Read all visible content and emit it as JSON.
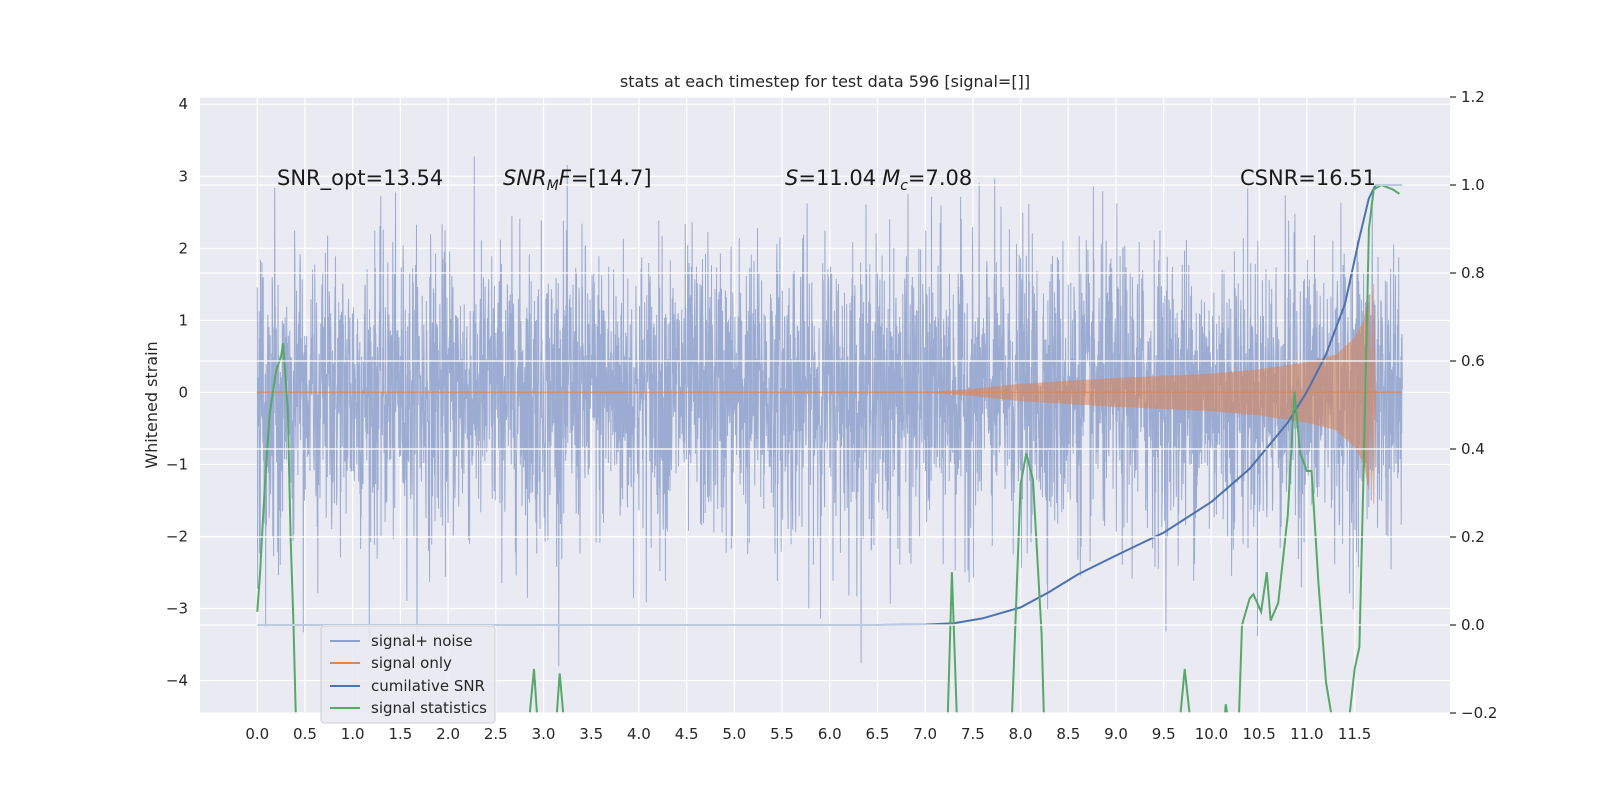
{
  "chart_data": {
    "type": "line",
    "title": "stats at each timestep for test data 596 [signal=[]]",
    "ylabel": "Whitened strain",
    "xlim": [
      -0.6,
      12.5
    ],
    "ylim": [
      -4.45,
      4.1
    ],
    "y2lim": [
      -0.2,
      1.2
    ],
    "x_ticks": [
      0.0,
      0.5,
      1.0,
      1.5,
      2.0,
      2.5,
      3.0,
      3.5,
      4.0,
      4.5,
      5.0,
      5.5,
      6.0,
      6.5,
      7.0,
      7.5,
      8.0,
      8.5,
      9.0,
      9.5,
      10.0,
      10.5,
      11.0,
      11.5
    ],
    "x_tick_labels": [
      "0.0",
      "0.5",
      "1.0",
      "1.5",
      "2.0",
      "2.5",
      "3.0",
      "3.5",
      "4.0",
      "4.5",
      "5.0",
      "5.5",
      "6.0",
      "6.5",
      "7.0",
      "7.5",
      "8.0",
      "8.5",
      "9.0",
      "9.5",
      "10.0",
      "10.5",
      "11.0",
      "11.5"
    ],
    "y_ticks": [
      -4,
      -3,
      -2,
      -1,
      0,
      1,
      2,
      3,
      4
    ],
    "y_tick_labels": [
      "−4",
      "−3",
      "−2",
      "−1",
      "0",
      "1",
      "2",
      "3",
      "4"
    ],
    "y2_ticks": [
      -0.2,
      0.0,
      0.2,
      0.4,
      0.6,
      0.8,
      1.0,
      1.2
    ],
    "y2_tick_labels": [
      "−0.2",
      "0.0",
      "0.2",
      "0.4",
      "0.6",
      "0.8",
      "1.0",
      "1.2"
    ],
    "grid": true,
    "legend_position": "lower-left",
    "annotations": {
      "snr_opt": "SNR_opt=13.54",
      "snr_mf_italic": "SNR",
      "snr_mf_sub": "M",
      "snr_mf_italic2": "F",
      "snr_mf_value": "=[14.7]",
      "s_italic": "S",
      "s_value": "=11.04",
      "mc_italic": "M",
      "mc_sub": "c",
      "mc_value": "=7.08",
      "csnr": "CSNR=16.51"
    },
    "series": [
      {
        "name": "signal+ noise",
        "axis": "left",
        "color": "#8da0cb",
        "style": "dense-noise",
        "x_range": [
          0.0,
          12.0
        ],
        "typical_envelope": [
          -1.65,
          1.65
        ],
        "min": -3.8,
        "max": 3.7
      },
      {
        "name": "signal only",
        "axis": "left",
        "color": "#dd8452",
        "style": "chirp",
        "x_range": [
          0.0,
          12.0
        ],
        "envelope": [
          [
            7.0,
            0.0
          ],
          [
            7.5,
            0.05
          ],
          [
            8.0,
            0.12
          ],
          [
            8.5,
            0.16
          ],
          [
            9.0,
            0.2
          ],
          [
            9.5,
            0.23
          ],
          [
            10.0,
            0.26
          ],
          [
            10.5,
            0.32
          ],
          [
            11.0,
            0.42
          ],
          [
            11.3,
            0.52
          ],
          [
            11.5,
            0.75
          ],
          [
            11.6,
            1.0
          ],
          [
            11.65,
            1.35
          ],
          [
            11.7,
            -1.55
          ],
          [
            11.72,
            0.0
          ],
          [
            12.0,
            0.0
          ]
        ]
      },
      {
        "name": "cumilative SNR",
        "axis": "right",
        "color": "#4c72b0",
        "points": [
          [
            0.0,
            0.0
          ],
          [
            6.5,
            0.0
          ],
          [
            7.0,
            0.001
          ],
          [
            7.3,
            0.004
          ],
          [
            7.6,
            0.015
          ],
          [
            8.0,
            0.04
          ],
          [
            8.3,
            0.075
          ],
          [
            8.6,
            0.115
          ],
          [
            9.0,
            0.158
          ],
          [
            9.5,
            0.21
          ],
          [
            10.0,
            0.28
          ],
          [
            10.4,
            0.355
          ],
          [
            10.8,
            0.46
          ],
          [
            11.0,
            0.53
          ],
          [
            11.2,
            0.615
          ],
          [
            11.4,
            0.73
          ],
          [
            11.55,
            0.88
          ],
          [
            11.65,
            0.97
          ],
          [
            11.72,
            1.0
          ],
          [
            12.0,
            1.0
          ]
        ]
      },
      {
        "name": "signal statistics",
        "axis": "right",
        "color": "#55a868",
        "points": [
          [
            0.0,
            0.03
          ],
          [
            0.03,
            0.12
          ],
          [
            0.08,
            0.32
          ],
          [
            0.13,
            0.48
          ],
          [
            0.2,
            0.58
          ],
          [
            0.25,
            0.61
          ],
          [
            0.27,
            0.64
          ],
          [
            0.3,
            0.55
          ],
          [
            0.32,
            0.49
          ],
          [
            0.35,
            0.2
          ],
          [
            0.38,
            0.0
          ],
          [
            0.41,
            -0.2
          ],
          [
            2.83,
            -0.2
          ],
          [
            2.9,
            -0.1
          ],
          [
            2.95,
            -0.2
          ],
          [
            3.12,
            -0.2
          ],
          [
            3.17,
            -0.11
          ],
          [
            3.23,
            -0.2
          ],
          [
            7.23,
            -0.2
          ],
          [
            7.28,
            0.12
          ],
          [
            7.34,
            -0.2
          ],
          [
            7.9,
            -0.2
          ],
          [
            8.0,
            0.32
          ],
          [
            8.06,
            0.39
          ],
          [
            8.13,
            0.33
          ],
          [
            8.22,
            -0.02
          ],
          [
            8.25,
            -0.2
          ],
          [
            9.65,
            -0.2
          ],
          [
            9.72,
            -0.1
          ],
          [
            9.8,
            -0.2
          ],
          [
            10.12,
            -0.2
          ],
          [
            10.15,
            -0.18
          ],
          [
            10.2,
            -0.2
          ],
          [
            10.28,
            -0.2
          ],
          [
            10.32,
            0.0
          ],
          [
            10.4,
            0.06
          ],
          [
            10.44,
            0.07
          ],
          [
            10.52,
            0.03
          ],
          [
            10.58,
            0.12
          ],
          [
            10.62,
            0.01
          ],
          [
            10.7,
            0.05
          ],
          [
            10.8,
            0.25
          ],
          [
            10.87,
            0.53
          ],
          [
            10.93,
            0.39
          ],
          [
            11.0,
            0.35
          ],
          [
            11.05,
            0.35
          ],
          [
            11.12,
            0.1
          ],
          [
            11.2,
            -0.13
          ],
          [
            11.3,
            -0.2
          ],
          [
            11.42,
            -0.2
          ],
          [
            11.5,
            -0.1
          ],
          [
            11.55,
            -0.05
          ],
          [
            11.6,
            0.4
          ],
          [
            11.65,
            0.9
          ],
          [
            11.7,
            0.99
          ],
          [
            11.78,
            1.0
          ],
          [
            11.9,
            0.99
          ],
          [
            11.97,
            0.98
          ]
        ]
      }
    ]
  }
}
